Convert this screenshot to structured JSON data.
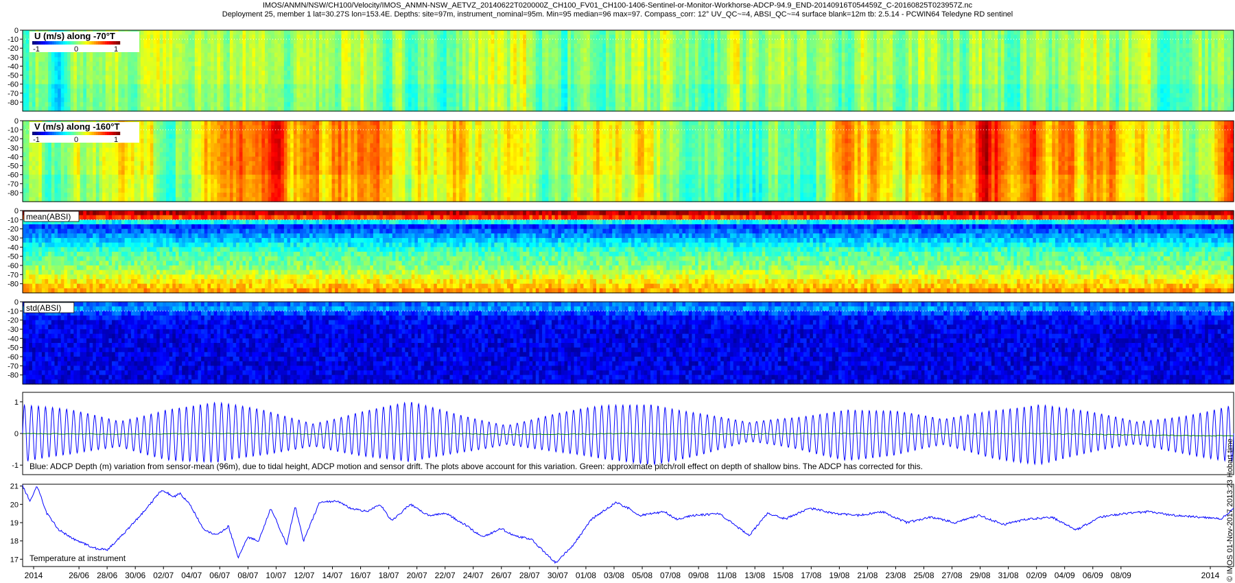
{
  "header": {
    "line1": "IMOS/ANMN/NSW/CH100/Velocity/IMOS_ANMN-NSW_AETVZ_20140622T020000Z_CH100_FV01_CH100-1406-Sentinel-or-Monitor-Workhorse-ADCP-94.9_END-20140916T054459Z_C-20160825T023957Z.nc",
    "line2": "Deployment 25, member 1 lat=30.27S lon=153.4E. Depths: site=97m, instrument_nominal=95m. Min=95 median=96 max=97. Compass_corr: 12° UV_QC~=4, ABSI_QC~=4 surface blank=12m tb: 2.5.14 - PCWIN64 Teledyne RD sentinel"
  },
  "credit": "© IMOS 01-Nov-2017 2013:23 Hobart time",
  "chart_data": [
    {
      "type": "heatmap",
      "title": "U (m/s) along -70°T",
      "y_ticks": [
        "0",
        "-10",
        "-20",
        "-30",
        "-40",
        "-50",
        "-60",
        "-70",
        "-80"
      ],
      "ylim": [
        -90,
        0
      ],
      "surface_blank_depth": -10,
      "colorbar": {
        "ticks": [
          "-1",
          "0",
          "1"
        ],
        "range": [
          -1.3,
          1.3
        ],
        "colormap": "jet"
      },
      "band_fraction_samples": [
        0.0,
        0.04,
        0.08,
        0.12,
        0.16,
        0.2,
        0.24,
        0.28,
        0.32,
        0.36,
        0.4,
        0.44,
        0.48,
        0.52,
        0.56,
        0.6,
        0.64,
        0.68,
        0.72,
        0.76,
        0.8,
        0.84,
        0.88,
        0.92,
        0.96,
        1.0
      ],
      "values_approx": [
        0.05,
        -0.1,
        0.15,
        0.2,
        0.25,
        0.05,
        0.1,
        0.3,
        0.0,
        0.1,
        0.2,
        -0.05,
        0.05,
        0.1,
        0.15,
        0.0,
        -0.1,
        0.1,
        0.2,
        0.1,
        0.0,
        0.05,
        0.15,
        0.1,
        0.05,
        0.0
      ]
    },
    {
      "type": "heatmap",
      "title": "V (m/s) along -160°T",
      "y_ticks": [
        "0",
        "-10",
        "-20",
        "-30",
        "-40",
        "-50",
        "-60",
        "-70",
        "-80"
      ],
      "ylim": [
        -90,
        0
      ],
      "surface_blank_depth": -10,
      "colorbar": {
        "ticks": [
          "-1",
          "0",
          "1"
        ],
        "range": [
          -1.3,
          1.3
        ],
        "colormap": "jet"
      },
      "band_fraction_samples": [
        0.0,
        0.04,
        0.08,
        0.12,
        0.16,
        0.2,
        0.24,
        0.28,
        0.32,
        0.36,
        0.4,
        0.44,
        0.48,
        0.52,
        0.56,
        0.6,
        0.64,
        0.68,
        0.72,
        0.76,
        0.8,
        0.84,
        0.88,
        0.92,
        0.96,
        1.0
      ],
      "values_approx": [
        0.1,
        0.0,
        0.3,
        0.05,
        0.6,
        0.8,
        0.5,
        0.7,
        0.3,
        0.4,
        0.2,
        0.1,
        0.5,
        0.2,
        0.1,
        -0.2,
        0.0,
        0.4,
        0.5,
        0.6,
        0.9,
        0.7,
        0.5,
        0.6,
        0.1,
        0.8
      ]
    },
    {
      "type": "heatmap",
      "title": "mean(ABSI)",
      "y_ticks": [
        "0",
        "-10",
        "-20",
        "-30",
        "-40",
        "-50",
        "-60",
        "-70",
        "-80"
      ],
      "ylim": [
        -90,
        0
      ],
      "surface_blank_depth": -10,
      "colormap": "jet",
      "depth_profile_norm": {
        "depths": [
          -2,
          -8,
          -15,
          -30,
          -45,
          -60,
          -75,
          -88
        ],
        "values": [
          0.95,
          0.8,
          0.15,
          0.3,
          0.45,
          0.5,
          0.62,
          0.72
        ]
      }
    },
    {
      "type": "heatmap",
      "title": "std(ABSI)",
      "y_ticks": [
        "0",
        "-10",
        "-20",
        "-30",
        "-40",
        "-50",
        "-60",
        "-70",
        "-80"
      ],
      "ylim": [
        -90,
        0
      ],
      "surface_blank_depth": -10,
      "colormap": "jet",
      "depth_profile_norm": {
        "depths": [
          -2,
          -8,
          -15,
          -30,
          -60,
          -88
        ],
        "values": [
          0.22,
          0.28,
          0.14,
          0.1,
          0.1,
          0.1
        ]
      }
    },
    {
      "type": "line",
      "y_ticks": [
        "1",
        "0",
        "-1"
      ],
      "ylim": [
        -1.3,
        1.3
      ],
      "annotation": "Blue: ADCP Depth (m) variation from sensor-mean (96m), due to tidal height, ADCP motion and sensor drift. The plots above account for this variation. Green: approximate pitch/roll effect on depth of shallow bins. The ADCP has corrected for this.",
      "series": [
        {
          "color": "#0000ff",
          "tidal_amplitude_samples_m": [
            0.9,
            0.7,
            0.4,
            0.8,
            0.95,
            0.7,
            0.35,
            0.7,
            0.95,
            0.6,
            0.3,
            0.6,
            0.85,
            0.95,
            0.65,
            0.3,
            0.5,
            0.8,
            0.7,
            0.4,
            0.75,
            0.95,
            0.65,
            0.35,
            0.6,
            0.9
          ],
          "periods_across_span": 172
        },
        {
          "color": "#008000",
          "values_m": [
            0.0,
            -0.02,
            0.0,
            -0.01,
            0.0,
            -0.03,
            0.0,
            -0.02,
            0.0,
            -0.01,
            0.0,
            -0.05,
            -0.08
          ]
        }
      ]
    },
    {
      "type": "line",
      "y_ticks": [
        "21",
        "20",
        "19",
        "18",
        "17"
      ],
      "ylim": [
        16.6,
        21.1
      ],
      "annotation": "Temperature at instrument",
      "series": [
        {
          "color": "#0000ff",
          "name": "Temperature at instrument",
          "time_fraction": [
            0.0,
            0.006,
            0.012,
            0.02,
            0.03,
            0.045,
            0.06,
            0.07,
            0.085,
            0.1,
            0.115,
            0.125,
            0.13,
            0.138,
            0.15,
            0.16,
            0.17,
            0.178,
            0.186,
            0.195,
            0.205,
            0.218,
            0.225,
            0.232,
            0.245,
            0.26,
            0.27,
            0.285,
            0.295,
            0.305,
            0.32,
            0.335,
            0.35,
            0.365,
            0.38,
            0.395,
            0.405,
            0.42,
            0.44,
            0.455,
            0.47,
            0.49,
            0.5,
            0.51,
            0.53,
            0.54,
            0.555,
            0.575,
            0.6,
            0.615,
            0.63,
            0.65,
            0.67,
            0.69,
            0.71,
            0.73,
            0.75,
            0.77,
            0.79,
            0.81,
            0.83,
            0.85,
            0.87,
            0.89,
            0.91,
            0.93,
            0.95,
            0.97,
            0.99,
            1.0
          ],
          "temperature": [
            21.0,
            20.2,
            21.0,
            19.5,
            18.6,
            18.0,
            17.6,
            17.5,
            18.5,
            19.6,
            20.8,
            20.4,
            20.6,
            20.0,
            18.6,
            18.3,
            18.8,
            17.1,
            18.2,
            18.0,
            19.8,
            17.8,
            19.9,
            18.0,
            20.1,
            20.2,
            19.8,
            19.6,
            20.0,
            19.1,
            20.0,
            19.4,
            19.5,
            18.9,
            18.2,
            18.7,
            18.3,
            18.1,
            16.8,
            17.8,
            19.2,
            20.1,
            19.8,
            19.4,
            19.6,
            19.2,
            19.4,
            19.5,
            18.3,
            19.5,
            19.2,
            19.8,
            19.5,
            19.4,
            19.6,
            19.0,
            19.3,
            19.0,
            19.4,
            18.9,
            19.2,
            19.3,
            18.6,
            19.3,
            19.5,
            19.6,
            19.4,
            19.3,
            19.2,
            19.8
          ]
        }
      ]
    }
  ],
  "time_axis": {
    "labels": [
      "2014",
      "26/06",
      "28/06",
      "30/06",
      "02/07",
      "04/07",
      "06/07",
      "08/07",
      "10/07",
      "12/07",
      "14/07",
      "16/07",
      "18/07",
      "20/07",
      "22/07",
      "24/07",
      "26/07",
      "28/07",
      "30/07",
      "01/08",
      "03/08",
      "05/08",
      "07/08",
      "09/08",
      "11/08",
      "13/08",
      "15/08",
      "17/08",
      "19/08",
      "21/08",
      "23/08",
      "25/08",
      "27/08",
      "29/08",
      "31/08",
      "02/09",
      "04/09",
      "06/09",
      "08/09",
      "2014"
    ],
    "start": "2014-06-22",
    "end": "2014-09-16"
  }
}
